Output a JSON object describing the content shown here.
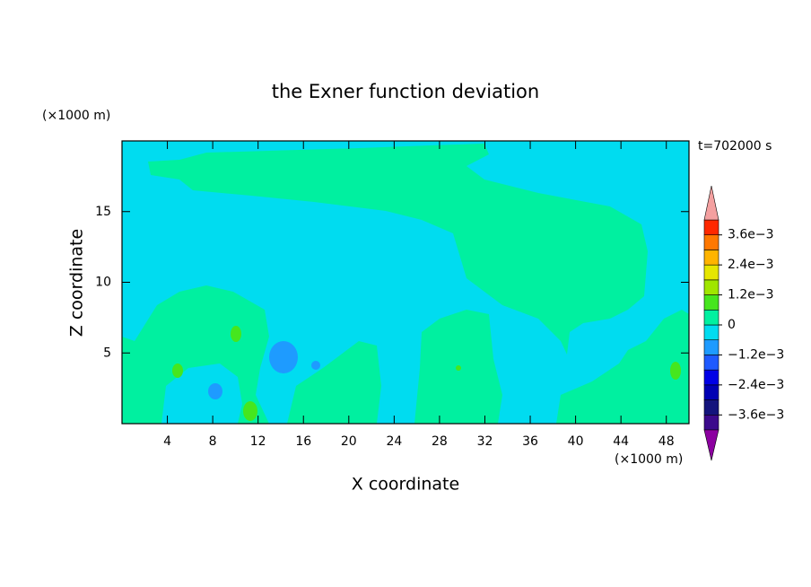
{
  "chart_data": {
    "type": "contour",
    "title": "the Exner function deviation",
    "subtitle": "t=702000 s",
    "x_label": "X coordinate",
    "y_label": "Z coordinate",
    "x_unit": "(×1000 m)",
    "y_unit": "(×1000 m)",
    "xlim": [
      0,
      50
    ],
    "xticks": [
      4,
      8,
      12,
      16,
      20,
      24,
      28,
      32,
      36,
      40,
      44,
      48
    ],
    "ylim": [
      0,
      20
    ],
    "yticks": [
      5,
      10,
      15
    ],
    "levels": [
      -0.0042,
      -0.0036,
      -0.003,
      -0.0024,
      -0.0018,
      -0.0012,
      -0.0006,
      0,
      0.0006,
      0.0012,
      0.0018,
      0.0024,
      0.003,
      0.0036,
      0.0042
    ],
    "colors": [
      "#3c0a8c",
      "#14147d",
      "#0000b4",
      "#0000e6",
      "#1e5aff",
      "#1e9bff",
      "#00dcf0",
      "#00f0a0",
      "#46e61e",
      "#a0e600",
      "#e6e600",
      "#ffb400",
      "#ff7800",
      "#ff2800"
    ],
    "under_color": "#8c00a0",
    "over_color": "#f4a0a0",
    "colorbar_ticks": [
      {
        "value": -0.0036,
        "label": "−3.6e−3"
      },
      {
        "value": -0.0024,
        "label": "−2.4e−3"
      },
      {
        "value": -0.0012,
        "label": "−1.2e−3"
      },
      0,
      {
        "value": 0.0012,
        "label": "1.2e−3"
      },
      {
        "value": 0.0024,
        "label": "2.4e−3"
      },
      {
        "value": 0.0036,
        "label": "3.6e−3"
      }
    ]
  }
}
